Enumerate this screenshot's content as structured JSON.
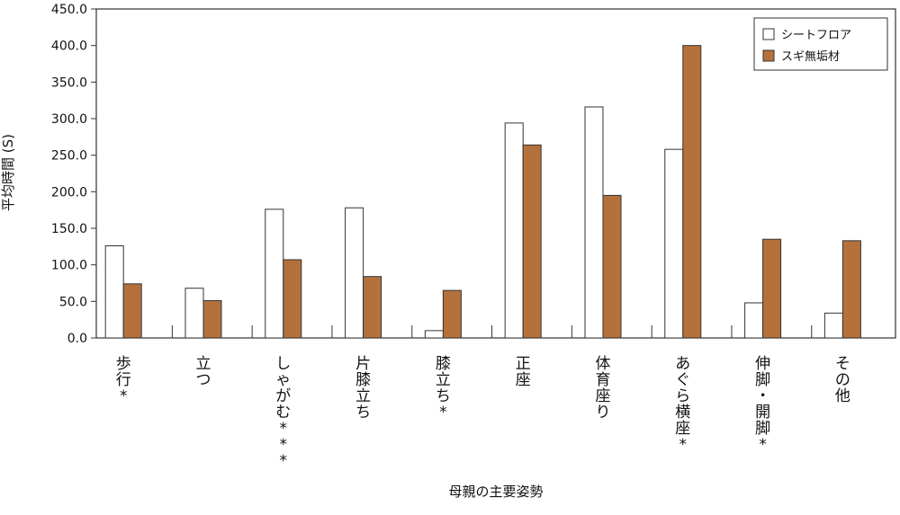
{
  "chart_data": {
    "type": "bar",
    "categories": [
      "歩行*",
      "立つ",
      "しゃがむ***",
      "片膝立ち",
      "膝立ち*",
      "正座",
      "体育座り",
      "あぐら横座*",
      "伸脚・開脚*",
      "その他"
    ],
    "series": [
      {
        "name": "シートフロア",
        "color": "#ffffff",
        "values": [
          126,
          68,
          176,
          178,
          10,
          294,
          316,
          258,
          48,
          34
        ]
      },
      {
        "name": "スギ無垢材",
        "color": "#b5713b",
        "values": [
          74,
          51,
          107,
          84,
          65,
          264,
          195,
          400,
          135,
          133
        ]
      }
    ],
    "xlabel": "母親の主要姿勢",
    "ylabel": "平均時間 (S)",
    "ylim": [
      0,
      450
    ],
    "yticks": [
      "0.0",
      "50.0",
      "100.0",
      "150.0",
      "200.0",
      "250.0",
      "300.0",
      "350.0",
      "400.0",
      "450.0"
    ],
    "legend_position": "top-right",
    "grid": false
  }
}
